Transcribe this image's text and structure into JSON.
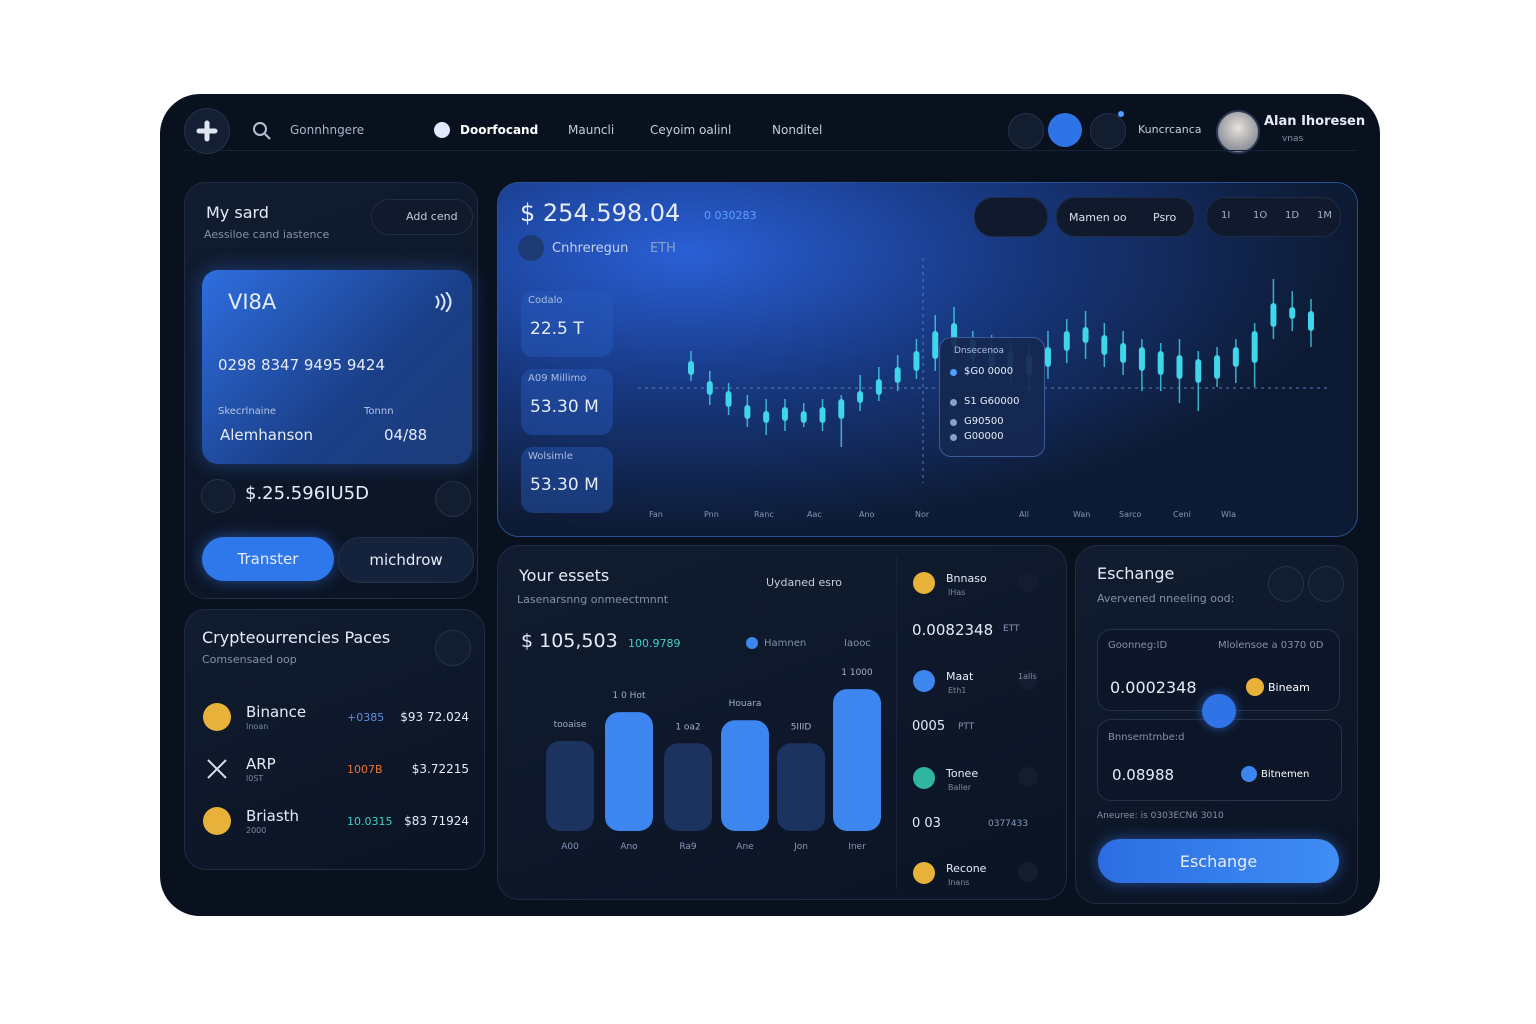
{
  "nav": {
    "search": "Gonnhngere",
    "tabs": [
      "Doorfocand",
      "Mauncli",
      "Ceyoim oalinl",
      "Nonditel"
    ],
    "account": "Kuncrcanca",
    "user_name": "Alan Ihoresen",
    "user_sub": "vnas"
  },
  "my_card": {
    "title": "My sard",
    "subtitle": "Aessiloe cand iastence",
    "add_button": "Add cend",
    "brand": "VI8A",
    "number": "0298 8347 9495 9424",
    "holder_label": "Skecrlnaine",
    "holder": "Alemhanson",
    "expiry_label": "Tonnn",
    "expiry": "04/88",
    "balance": "$.25.596IU5D",
    "buttons": [
      "Transter",
      "michdrow"
    ]
  },
  "prices": {
    "title": "Crypteourrencies Paces",
    "subtitle": "Comsensaed oop",
    "rows": [
      {
        "name": "Binance",
        "sub": "Inoan",
        "change": "+0385",
        "price": "$93 72.024",
        "color": "#e8b23a"
      },
      {
        "name": "ARP",
        "sub": "l0ST",
        "change": "1007B",
        "price": "$3.72215",
        "color": "#d7dde8"
      },
      {
        "name": "Briasth",
        "sub": "2000",
        "change": "10.0315",
        "price": "$83 71924",
        "color": "#e8b23a"
      }
    ],
    "change_colors": [
      "#5b8fe0",
      "#e8743a",
      "#3fd0c8"
    ]
  },
  "market": {
    "value": "$ 254.598.04",
    "change": "0 030283",
    "coin": "Cnhreregun",
    "ticker": "ETH",
    "modes": [
      "Mamen oo",
      "Psro"
    ],
    "timeframes": [
      "1I",
      "1O",
      "1D",
      "1M"
    ],
    "stats": [
      {
        "label": "Codalo",
        "value": "22.5 T"
      },
      {
        "label": "A09 Millimo",
        "value": "53.30 M"
      },
      {
        "label": "Wolsimle",
        "value": "53.30 M"
      }
    ],
    "tooltip": {
      "title": "Dnsecenoa",
      "rows": [
        "$G0 0000",
        "S1 G60000",
        "G90500",
        "G00000"
      ]
    },
    "x_labels": [
      "Fan",
      "Pnn",
      "Ranc",
      "Aac",
      "Ano",
      "Nor",
      "All",
      "Wan",
      "Sarco",
      "Cenl",
      "Wla"
    ]
  },
  "chart_data": {
    "type": "candlestick",
    "color": "#3fd6ea",
    "ylim": [
      0,
      100
    ],
    "candles": [
      {
        "open": 55,
        "close": 48,
        "high": 60,
        "low": 45
      },
      {
        "open": 45,
        "close": 38,
        "high": 50,
        "low": 33
      },
      {
        "open": 40,
        "close": 32,
        "high": 44,
        "low": 28
      },
      {
        "open": 33,
        "close": 26,
        "high": 38,
        "low": 22
      },
      {
        "open": 30,
        "close": 24,
        "high": 36,
        "low": 18
      },
      {
        "open": 32,
        "close": 25,
        "high": 36,
        "low": 20
      },
      {
        "open": 30,
        "close": 24,
        "high": 34,
        "low": 22
      },
      {
        "open": 32,
        "close": 24,
        "high": 36,
        "low": 20
      },
      {
        "open": 36,
        "close": 26,
        "high": 38,
        "low": 12
      },
      {
        "open": 40,
        "close": 34,
        "high": 48,
        "low": 30
      },
      {
        "open": 46,
        "close": 38,
        "high": 52,
        "low": 35
      },
      {
        "open": 52,
        "close": 44,
        "high": 58,
        "low": 40
      },
      {
        "open": 60,
        "close": 50,
        "high": 66,
        "low": 46
      },
      {
        "open": 70,
        "close": 56,
        "high": 78,
        "low": 50
      },
      {
        "open": 74,
        "close": 62,
        "high": 82,
        "low": 55
      },
      {
        "open": 66,
        "close": 56,
        "high": 70,
        "low": 50
      },
      {
        "open": 62,
        "close": 52,
        "high": 68,
        "low": 46
      },
      {
        "open": 60,
        "close": 50,
        "high": 66,
        "low": 44
      },
      {
        "open": 58,
        "close": 48,
        "high": 64,
        "low": 40
      },
      {
        "open": 62,
        "close": 52,
        "high": 70,
        "low": 46
      },
      {
        "open": 70,
        "close": 60,
        "high": 76,
        "low": 54
      },
      {
        "open": 72,
        "close": 64,
        "high": 80,
        "low": 56
      },
      {
        "open": 68,
        "close": 58,
        "high": 74,
        "low": 52
      },
      {
        "open": 64,
        "close": 54,
        "high": 70,
        "low": 48
      },
      {
        "open": 62,
        "close": 50,
        "high": 66,
        "low": 40
      },
      {
        "open": 60,
        "close": 48,
        "high": 64,
        "low": 40
      },
      {
        "open": 58,
        "close": 46,
        "high": 66,
        "low": 34
      },
      {
        "open": 56,
        "close": 44,
        "high": 60,
        "low": 30
      },
      {
        "open": 58,
        "close": 46,
        "high": 62,
        "low": 42
      },
      {
        "open": 62,
        "close": 52,
        "high": 66,
        "low": 44
      },
      {
        "open": 70,
        "close": 54,
        "high": 74,
        "low": 42
      },
      {
        "open": 84,
        "close": 72,
        "high": 96,
        "low": 66
      },
      {
        "open": 82,
        "close": 76,
        "high": 90,
        "low": 70
      },
      {
        "open": 80,
        "close": 70,
        "high": 86,
        "low": 62
      }
    ]
  },
  "assets": {
    "title": "Your essets",
    "subtitle": "Lasenarsnng onmeectmnnt",
    "update": "Uydaned esro",
    "value": "$ 105,503",
    "change": "100.9789",
    "legend": [
      "Hamnen",
      "Iaooc"
    ],
    "bars": {
      "type": "bar",
      "categories": [
        "A00",
        "Ano",
        "Ra9",
        "Ane",
        "Jon",
        "Iner"
      ],
      "top_labels": [
        "tooaise",
        "1 0 Hot",
        "1 oa2",
        "Houara",
        "5IIID",
        "1 1000"
      ],
      "values": [
        78,
        103,
        76,
        96,
        76,
        123
      ],
      "colors": [
        "#1c3360",
        "#3d86f0",
        "#1c3360",
        "#3d86f0",
        "#1c3360",
        "#3d86f0"
      ],
      "ylim": [
        0,
        130
      ]
    },
    "coins": [
      {
        "name": "Bnnaso",
        "sub": "lHas",
        "amount": "0.0082348",
        "unit": "ETT",
        "color": "#e8b23a"
      },
      {
        "name": "Maat",
        "sub": "Eth1",
        "side": "1alls",
        "amount": "0005",
        "unit": "PTT",
        "color": "#3d86f0"
      },
      {
        "name": "Tonee",
        "sub": "Baller",
        "amount": "0 03",
        "unit": "0377433",
        "color": "#2fb5a0"
      },
      {
        "name": "Recone",
        "sub": "Inans",
        "color": "#e8b23a"
      }
    ]
  },
  "exchange": {
    "title": "Eschange",
    "subtitle": "Avervened nneeling ood:",
    "from_label": "Goonneg:ID",
    "from_note": "Mlolensoe a 0370 0D",
    "from_amount": "0.0002348",
    "from_coin": "Bineam",
    "to_label": "Bnnsemtmbe:d",
    "to_amount": "0.08988",
    "to_coin": "Bitnemen",
    "footnote": "Aneuree: is 0303ECN6 3010",
    "button": "Eschange"
  }
}
